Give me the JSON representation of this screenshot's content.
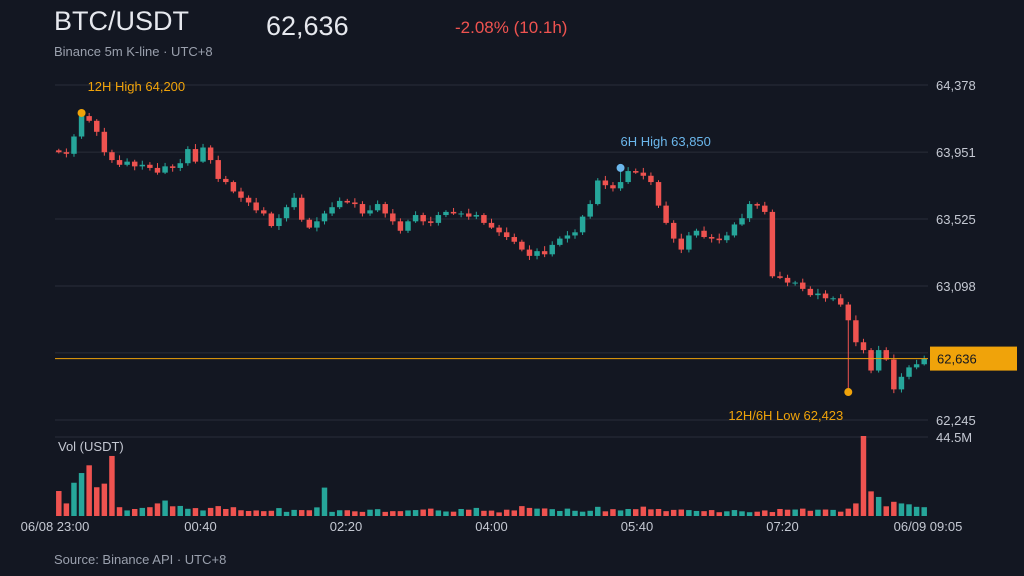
{
  "header": {
    "symbol": "BTC/USDT",
    "last_price": "62,636",
    "change": "-2.08% (10.1h)",
    "subtitle": "Binance 5m K-line · UTC+8"
  },
  "footer": {
    "source": "Source: Binance API · UTC+8"
  },
  "colors": {
    "background": "#131722",
    "up": "#26a69a",
    "down": "#ef5350",
    "price_line": "#f0a30a",
    "grid": "#2a2e39",
    "annotation_orange": "#f0a30a",
    "annotation_blue": "#6bb7ec",
    "change_text": "#ef5350"
  },
  "chart_data": {
    "type": "candlestick",
    "interval": "5m",
    "price_axis": {
      "ticks": [
        62245,
        62672,
        63098,
        63525,
        63951,
        64378
      ],
      "tick_labels": [
        "62,245",
        "",
        "63,098",
        "63,525",
        "63,951",
        "64,378"
      ],
      "range": [
        62245,
        64378
      ]
    },
    "time_axis": {
      "tick_labels": [
        "06/08 23:00",
        "00:40",
        "02:20",
        "04:00",
        "05:40",
        "07:20",
        "06/09 09:05"
      ]
    },
    "volume_axis": {
      "label": "Vol (USDT)",
      "max_label": "44.5M",
      "max": 44.5
    },
    "current_price": {
      "value": 62636,
      "label": "62,636"
    },
    "annotations": [
      {
        "text": "12H High 64,200",
        "value": 64200,
        "index": 3,
        "kind": "high",
        "color": "#f0a30a"
      },
      {
        "text": "6H High 63,850",
        "value": 63850,
        "index": 74,
        "kind": "high",
        "color": "#6bb7ec"
      },
      {
        "text": "12H/6H Low 62,423",
        "value": 62423,
        "index": 104,
        "kind": "low",
        "color": "#f0a30a"
      }
    ],
    "closes": [
      63950,
      63940,
      64050,
      64180,
      64150,
      64080,
      63950,
      63900,
      63870,
      63890,
      63860,
      63870,
      63850,
      63820,
      63860,
      63850,
      63880,
      63970,
      63890,
      63980,
      63900,
      63780,
      63760,
      63700,
      63660,
      63630,
      63580,
      63560,
      63480,
      63530,
      63600,
      63660,
      63520,
      63470,
      63510,
      63560,
      63600,
      63640,
      63630,
      63620,
      63560,
      63580,
      63620,
      63560,
      63510,
      63450,
      63510,
      63550,
      63510,
      63500,
      63550,
      63570,
      63560,
      63560,
      63540,
      63550,
      63500,
      63470,
      63440,
      63410,
      63380,
      63330,
      63290,
      63320,
      63300,
      63360,
      63400,
      63420,
      63440,
      63540,
      63620,
      63770,
      63740,
      63720,
      63760,
      63830,
      63820,
      63800,
      63760,
      63610,
      63500,
      63400,
      63330,
      63420,
      63450,
      63410,
      63400,
      63390,
      63420,
      63490,
      63530,
      63620,
      63610,
      63570,
      63160,
      63150,
      63120,
      63120,
      63080,
      63040,
      63050,
      63020,
      63020,
      62980,
      62880,
      62740,
      62690,
      62560,
      62690,
      62630,
      62440,
      62520,
      62580,
      62600,
      62636
    ],
    "volumes": [
      13.9,
      7.0,
      18.5,
      23.9,
      28.2,
      16.0,
      18.0,
      33.4,
      4.9,
      3.1,
      3.9,
      4.5,
      4.9,
      7.0,
      8.6,
      5.4,
      5.6,
      4.0,
      4.4,
      3.1,
      4.5,
      5.5,
      3.9,
      4.9,
      3.2,
      2.8,
      3.1,
      2.7,
      2.9,
      4.4,
      2.3,
      3.4,
      3.3,
      3.2,
      4.8,
      15.8,
      2.3,
      3.2,
      3.2,
      2.6,
      2.3,
      3.5,
      3.8,
      2.3,
      2.7,
      2.7,
      3.1,
      3.3,
      3.6,
      4.1,
      3.1,
      2.5,
      2.4,
      3.9,
      3.5,
      4.5,
      2.9,
      3.0,
      2.0,
      3.5,
      3.1,
      5.5,
      4.5,
      4.1,
      4.2,
      3.8,
      2.8,
      4.1,
      2.9,
      2.4,
      2.9,
      5.1,
      2.6,
      3.8,
      3.1,
      3.9,
      3.8,
      5.2,
      3.7,
      3.9,
      2.7,
      3.4,
      3.6,
      3.3,
      2.8,
      2.7,
      3.3,
      2.1,
      2.6,
      3.3,
      2.6,
      2.1,
      2.4,
      3.1,
      2.2,
      3.9,
      3.5,
      3.6,
      4.1,
      2.9,
      3.5,
      3.6,
      3.4,
      2.4,
      4.1,
      7.0,
      44.5,
      13.7,
      10.6,
      5.4,
      7.9,
      7.0,
      6.5,
      5.1,
      4.9
    ]
  }
}
